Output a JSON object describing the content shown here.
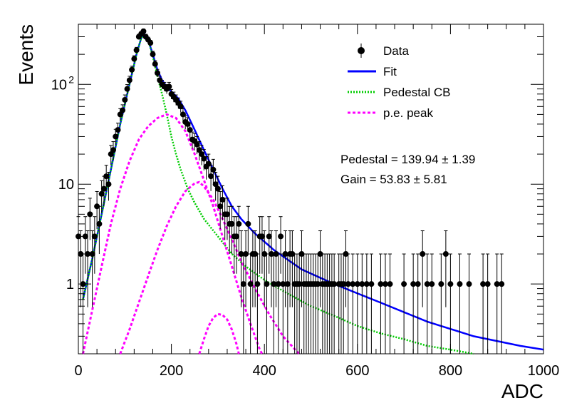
{
  "chart_data": {
    "type": "scatter",
    "xlabel": "ADC",
    "ylabel": "Events",
    "xlim": [
      0,
      1000
    ],
    "ylim": [
      0.2,
      400
    ],
    "yscale": "log",
    "grid": false,
    "legend_position": "top-right",
    "x_ticks": [
      "0",
      "200",
      "400",
      "600",
      "800",
      "1000"
    ],
    "y_ticks": [
      {
        "value": 1,
        "label": "1"
      },
      {
        "value": 10,
        "label": "10"
      },
      {
        "value": 100,
        "label": "10",
        "exponent": "2"
      }
    ],
    "legend": [
      {
        "label": "Data",
        "style": "marker"
      },
      {
        "label": "Fit",
        "style": "line",
        "color": "#0000ff"
      },
      {
        "label": "Pedestal CB",
        "style": "dotted",
        "color": "#00cc00"
      },
      {
        "label": "p.e. peak",
        "style": "dashed",
        "color": "#ff00ff"
      }
    ],
    "annotations": [
      "Pedestal = 139.94 ± 1.39",
      "Gain = 53.83 ± 5.81"
    ],
    "fit_parameters": {
      "pedestal": 139.94,
      "pedestal_err": 1.39,
      "gain": 53.83,
      "gain_err": 5.81
    },
    "series": [
      {
        "name": "Data",
        "kind": "points",
        "color": "#000000",
        "points": [
          [
            0,
            3
          ],
          [
            5,
            2
          ],
          [
            10,
            1
          ],
          [
            15,
            3
          ],
          [
            20,
            2
          ],
          [
            25,
            5
          ],
          [
            30,
            2
          ],
          [
            35,
            3
          ],
          [
            40,
            6
          ],
          [
            45,
            4
          ],
          [
            50,
            8
          ],
          [
            55,
            9
          ],
          [
            60,
            12
          ],
          [
            65,
            10
          ],
          [
            70,
            20
          ],
          [
            75,
            22
          ],
          [
            80,
            30
          ],
          [
            85,
            35
          ],
          [
            90,
            50
          ],
          [
            95,
            55
          ],
          [
            100,
            70
          ],
          [
            105,
            90
          ],
          [
            110,
            110
          ],
          [
            115,
            140
          ],
          [
            120,
            180
          ],
          [
            125,
            220
          ],
          [
            130,
            300
          ],
          [
            135,
            320
          ],
          [
            140,
            340
          ],
          [
            145,
            300
          ],
          [
            150,
            280
          ],
          [
            155,
            260
          ],
          [
            160,
            200
          ],
          [
            165,
            160
          ],
          [
            170,
            130
          ],
          [
            175,
            110
          ],
          [
            180,
            100
          ],
          [
            185,
            95
          ],
          [
            190,
            90
          ],
          [
            195,
            95
          ],
          [
            200,
            80
          ],
          [
            205,
            75
          ],
          [
            210,
            70
          ],
          [
            215,
            65
          ],
          [
            220,
            60
          ],
          [
            225,
            50
          ],
          [
            230,
            42
          ],
          [
            235,
            40
          ],
          [
            240,
            35
          ],
          [
            245,
            28
          ],
          [
            250,
            27
          ],
          [
            255,
            25
          ],
          [
            260,
            22
          ],
          [
            265,
            20
          ],
          [
            270,
            18
          ],
          [
            275,
            15
          ],
          [
            280,
            16
          ],
          [
            285,
            12
          ],
          [
            290,
            14
          ],
          [
            295,
            10
          ],
          [
            300,
            9
          ],
          [
            305,
            6
          ],
          [
            310,
            7
          ],
          [
            315,
            5
          ],
          [
            320,
            5
          ],
          [
            325,
            4
          ],
          [
            330,
            4
          ],
          [
            335,
            3
          ],
          [
            340,
            3
          ],
          [
            345,
            4
          ],
          [
            350,
            2
          ],
          [
            355,
            1
          ],
          [
            360,
            2
          ],
          [
            365,
            4
          ],
          [
            370,
            1
          ],
          [
            375,
            2
          ],
          [
            380,
            2
          ],
          [
            385,
            1
          ],
          [
            390,
            3
          ],
          [
            395,
            3
          ],
          [
            400,
            2
          ],
          [
            405,
            1
          ],
          [
            410,
            3
          ],
          [
            415,
            2
          ],
          [
            420,
            1
          ],
          [
            425,
            2
          ],
          [
            430,
            1
          ],
          [
            435,
            3
          ],
          [
            440,
            1
          ],
          [
            445,
            2
          ],
          [
            450,
            1
          ],
          [
            455,
            2
          ],
          [
            460,
            2
          ],
          [
            465,
            1
          ],
          [
            470,
            1
          ],
          [
            475,
            1
          ],
          [
            480,
            2
          ],
          [
            485,
            1
          ],
          [
            490,
            1
          ],
          [
            495,
            1
          ],
          [
            500,
            1
          ],
          [
            505,
            1
          ],
          [
            510,
            1
          ],
          [
            515,
            1
          ],
          [
            520,
            2
          ],
          [
            525,
            1
          ],
          [
            530,
            1
          ],
          [
            535,
            1
          ],
          [
            540,
            1
          ],
          [
            545,
            1
          ],
          [
            550,
            1
          ],
          [
            560,
            1
          ],
          [
            565,
            1
          ],
          [
            570,
            1
          ],
          [
            575,
            2
          ],
          [
            580,
            1
          ],
          [
            590,
            1
          ],
          [
            600,
            1
          ],
          [
            610,
            1
          ],
          [
            620,
            1
          ],
          [
            630,
            1
          ],
          [
            650,
            1
          ],
          [
            660,
            1
          ],
          [
            670,
            1
          ],
          [
            700,
            1
          ],
          [
            720,
            1
          ],
          [
            730,
            1
          ],
          [
            740,
            2
          ],
          [
            750,
            1
          ],
          [
            760,
            1
          ],
          [
            780,
            1
          ],
          [
            790,
            2
          ],
          [
            800,
            1
          ],
          [
            820,
            1
          ],
          [
            840,
            1
          ],
          [
            870,
            1
          ],
          [
            880,
            1
          ],
          [
            900,
            1
          ],
          [
            910,
            1
          ]
        ]
      },
      {
        "name": "Fit",
        "kind": "line",
        "color": "#0000ff",
        "points": [
          [
            10,
            0.7
          ],
          [
            30,
            1.8
          ],
          [
            50,
            5
          ],
          [
            70,
            14
          ],
          [
            90,
            40
          ],
          [
            110,
            100
          ],
          [
            125,
            200
          ],
          [
            135,
            290
          ],
          [
            142,
            320
          ],
          [
            150,
            280
          ],
          [
            160,
            200
          ],
          [
            170,
            140
          ],
          [
            180,
            110
          ],
          [
            190,
            95
          ],
          [
            200,
            85
          ],
          [
            215,
            72
          ],
          [
            230,
            55
          ],
          [
            250,
            35
          ],
          [
            270,
            22
          ],
          [
            290,
            14
          ],
          [
            310,
            9
          ],
          [
            330,
            6
          ],
          [
            350,
            4.5
          ],
          [
            380,
            3.2
          ],
          [
            420,
            2.2
          ],
          [
            480,
            1.4
          ],
          [
            550,
            1.0
          ],
          [
            650,
            0.65
          ],
          [
            750,
            0.42
          ],
          [
            850,
            0.3
          ],
          [
            950,
            0.24
          ],
          [
            1000,
            0.22
          ]
        ]
      },
      {
        "name": "Pedestal CB",
        "kind": "line",
        "color": "#00cc00",
        "points": [
          [
            10,
            0.7
          ],
          [
            30,
            1.8
          ],
          [
            50,
            5
          ],
          [
            70,
            14
          ],
          [
            90,
            40
          ],
          [
            110,
            100
          ],
          [
            125,
            200
          ],
          [
            135,
            290
          ],
          [
            142,
            320
          ],
          [
            150,
            280
          ],
          [
            160,
            190
          ],
          [
            170,
            120
          ],
          [
            180,
            80
          ],
          [
            190,
            50
          ],
          [
            200,
            30
          ],
          [
            210,
            20
          ],
          [
            220,
            14
          ],
          [
            235,
            9
          ],
          [
            250,
            6.5
          ],
          [
            270,
            4.5
          ],
          [
            300,
            3.0
          ],
          [
            330,
            2.0
          ],
          [
            360,
            1.5
          ],
          [
            400,
            1.1
          ],
          [
            450,
            0.8
          ],
          [
            500,
            0.6
          ],
          [
            550,
            0.48
          ],
          [
            600,
            0.38
          ],
          [
            650,
            0.32
          ],
          [
            700,
            0.28
          ],
          [
            750,
            0.24
          ],
          [
            800,
            0.22
          ],
          [
            850,
            0.2
          ]
        ]
      },
      {
        "name": "p.e. peak",
        "kind": "line",
        "color": "#ff00ff",
        "points": [
          [
            10,
            0.2
          ],
          [
            30,
            0.55
          ],
          [
            50,
            1.5
          ],
          [
            70,
            4
          ],
          [
            90,
            9
          ],
          [
            110,
            17
          ],
          [
            130,
            28
          ],
          [
            150,
            38
          ],
          [
            170,
            46
          ],
          [
            190,
            50
          ],
          [
            210,
            46
          ],
          [
            230,
            34
          ],
          [
            250,
            20
          ],
          [
            270,
            11
          ],
          [
            290,
            6
          ],
          [
            310,
            3
          ],
          [
            330,
            1.5
          ],
          [
            350,
            0.75
          ],
          [
            370,
            0.4
          ],
          [
            390,
            0.22
          ],
          [
            395,
            0.2
          ]
        ]
      },
      {
        "name": "p.e. peak",
        "kind": "line",
        "color": "#ff00ff",
        "points": [
          [
            90,
            0.2
          ],
          [
            110,
            0.35
          ],
          [
            130,
            0.65
          ],
          [
            150,
            1.2
          ],
          [
            170,
            2.2
          ],
          [
            190,
            3.8
          ],
          [
            210,
            6
          ],
          [
            230,
            8.5
          ],
          [
            250,
            10.2
          ],
          [
            260,
            10.5
          ],
          [
            270,
            9.5
          ],
          [
            290,
            7
          ],
          [
            310,
            4.5
          ],
          [
            330,
            2.8
          ],
          [
            350,
            1.7
          ],
          [
            380,
            0.9
          ],
          [
            410,
            0.5
          ],
          [
            440,
            0.3
          ],
          [
            470,
            0.21
          ],
          [
            475,
            0.2
          ]
        ]
      },
      {
        "name": "p.e. peak",
        "kind": "line",
        "color": "#ff00ff",
        "points": [
          [
            260,
            0.2
          ],
          [
            270,
            0.28
          ],
          [
            280,
            0.38
          ],
          [
            290,
            0.46
          ],
          [
            300,
            0.5
          ],
          [
            310,
            0.49
          ],
          [
            320,
            0.44
          ],
          [
            330,
            0.35
          ],
          [
            340,
            0.25
          ],
          [
            345,
            0.2
          ]
        ]
      }
    ]
  }
}
